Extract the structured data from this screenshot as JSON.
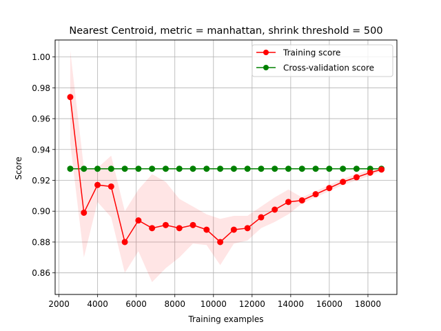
{
  "chart_data": {
    "type": "line",
    "title": "Nearest Centroid, metric = manhattan, shrink threshold = 500",
    "xlabel": "Training examples",
    "ylabel": "Score",
    "xlim": [
      1800,
      19500
    ],
    "ylim": [
      0.846,
      1.011
    ],
    "x_ticks": [
      2000,
      4000,
      6000,
      8000,
      10000,
      12000,
      14000,
      16000,
      18000
    ],
    "y_ticks": [
      0.86,
      0.88,
      0.9,
      0.92,
      0.94,
      0.96,
      0.98,
      1.0
    ],
    "x_tick_labels": [
      "2000",
      "4000",
      "6000",
      "8000",
      "10000",
      "12000",
      "14000",
      "16000",
      "18000"
    ],
    "y_tick_labels": [
      "0.86",
      "0.88",
      "0.90",
      "0.92",
      "0.94",
      "0.96",
      "0.98",
      "1.00"
    ],
    "grid": true,
    "legend_position": "top-right",
    "x": [
      2584,
      3290,
      3996,
      4702,
      5408,
      6114,
      6820,
      7526,
      8232,
      8938,
      9644,
      10350,
      11056,
      11762,
      12468,
      13174,
      13880,
      14586,
      15292,
      15998,
      16704,
      17410,
      18116,
      18700
    ],
    "series": [
      {
        "name": "Training score",
        "color": "#ff0000",
        "values": [
          0.974,
          0.899,
          0.917,
          0.916,
          0.88,
          0.894,
          0.889,
          0.891,
          0.889,
          0.891,
          0.888,
          0.88,
          0.888,
          0.889,
          0.896,
          0.901,
          0.906,
          0.907,
          0.911,
          0.915,
          0.919,
          0.922,
          0.925,
          0.927
        ],
        "band_upper": [
          1.004,
          0.928,
          0.928,
          0.936,
          0.9,
          0.914,
          0.924,
          0.919,
          0.908,
          0.903,
          0.898,
          0.895,
          0.897,
          0.897,
          0.903,
          0.909,
          0.914,
          0.909,
          0.913,
          0.917,
          0.921,
          0.924,
          0.927,
          0.928
        ],
        "band_lower": [
          0.944,
          0.87,
          0.906,
          0.896,
          0.86,
          0.874,
          0.854,
          0.863,
          0.87,
          0.879,
          0.878,
          0.865,
          0.879,
          0.881,
          0.889,
          0.893,
          0.898,
          0.905,
          0.909,
          0.913,
          0.917,
          0.92,
          0.923,
          0.926
        ]
      },
      {
        "name": "Cross-validation score",
        "color": "#008000",
        "values": [
          0.9275,
          0.9275,
          0.9275,
          0.9275,
          0.9275,
          0.9275,
          0.9275,
          0.9275,
          0.9275,
          0.9275,
          0.9275,
          0.9275,
          0.9275,
          0.9275,
          0.9275,
          0.9275,
          0.9275,
          0.9275,
          0.9275,
          0.9275,
          0.9275,
          0.9275,
          0.9275,
          0.9275
        ]
      }
    ]
  }
}
